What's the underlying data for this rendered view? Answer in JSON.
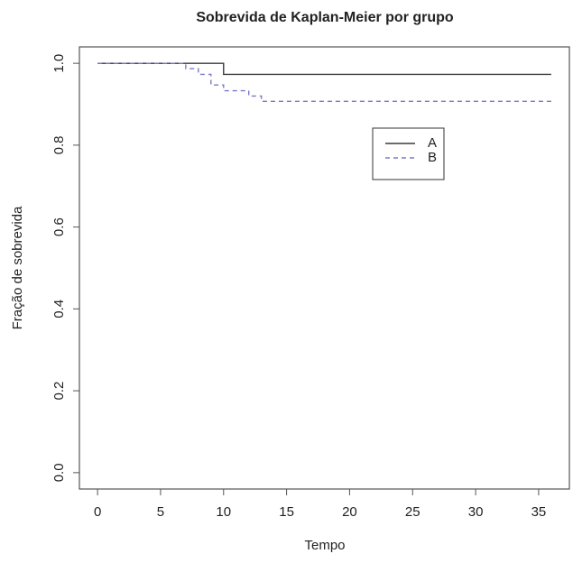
{
  "chart_data": {
    "type": "line",
    "drawstyle": "steps-post",
    "title": "Sobrevida de Kaplan-Meier por grupo",
    "xlabel": "Tempo",
    "ylabel": "Fração de sobrevida",
    "xlim": [
      -1.44,
      37.44
    ],
    "xticks": [
      0,
      5,
      10,
      15,
      20,
      25,
      30,
      35
    ],
    "ylim": [
      -0.04,
      1.04
    ],
    "yticks": [
      {
        "value": 0,
        "label": "0.0"
      },
      0.2,
      0.4,
      0.6,
      0.8,
      {
        "value": 1,
        "label": "1.0"
      }
    ],
    "grid": false,
    "legend": "upper right",
    "series": [
      {
        "name": "A",
        "color": "#3a3a3a",
        "linestyle": "solid",
        "x": [
          0,
          10,
          36
        ],
        "values": [
          1.0,
          0.973,
          0.973
        ]
      },
      {
        "name": "B",
        "color": "#7a7ac8",
        "linestyle": "dashed",
        "x": [
          0,
          7,
          8,
          9,
          10,
          12,
          13,
          36
        ],
        "values": [
          1.0,
          0.987,
          0.973,
          0.947,
          0.933,
          0.92,
          0.907,
          0.907
        ]
      }
    ]
  }
}
